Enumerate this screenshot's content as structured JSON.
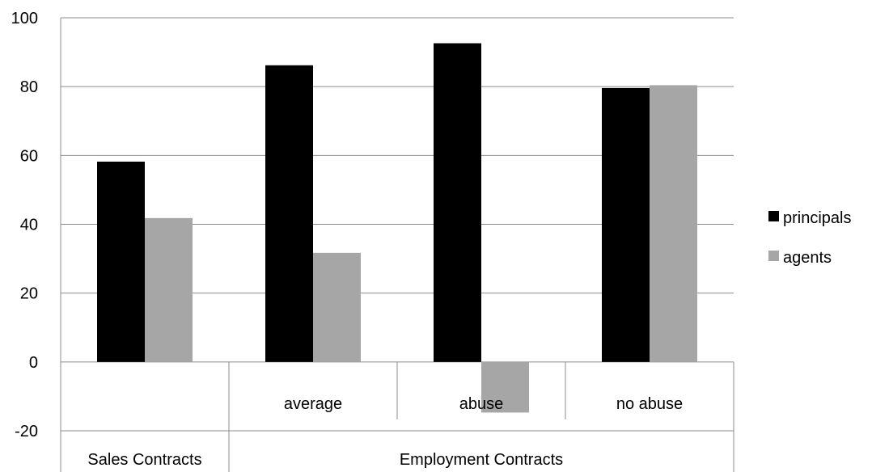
{
  "chart_data": {
    "type": "bar",
    "categories": [
      "",
      "average",
      "abuse",
      "no abuse"
    ],
    "groups": [
      {
        "label": "Sales Contracts",
        "span": [
          0,
          0
        ]
      },
      {
        "label": "Employment Contracts",
        "span": [
          1,
          3
        ]
      }
    ],
    "series": [
      {
        "name": "principals",
        "color": "#000000",
        "values": [
          58.2,
          86.2,
          92.6,
          79.6
        ]
      },
      {
        "name": "agents",
        "color": "#a6a6a6",
        "values": [
          41.8,
          31.7,
          -14.7,
          80.4
        ]
      }
    ],
    "ylim": [
      -20,
      100
    ],
    "yticks": [
      -20,
      0,
      20,
      40,
      60,
      80,
      100
    ],
    "grid": true,
    "legend_position": "right"
  }
}
